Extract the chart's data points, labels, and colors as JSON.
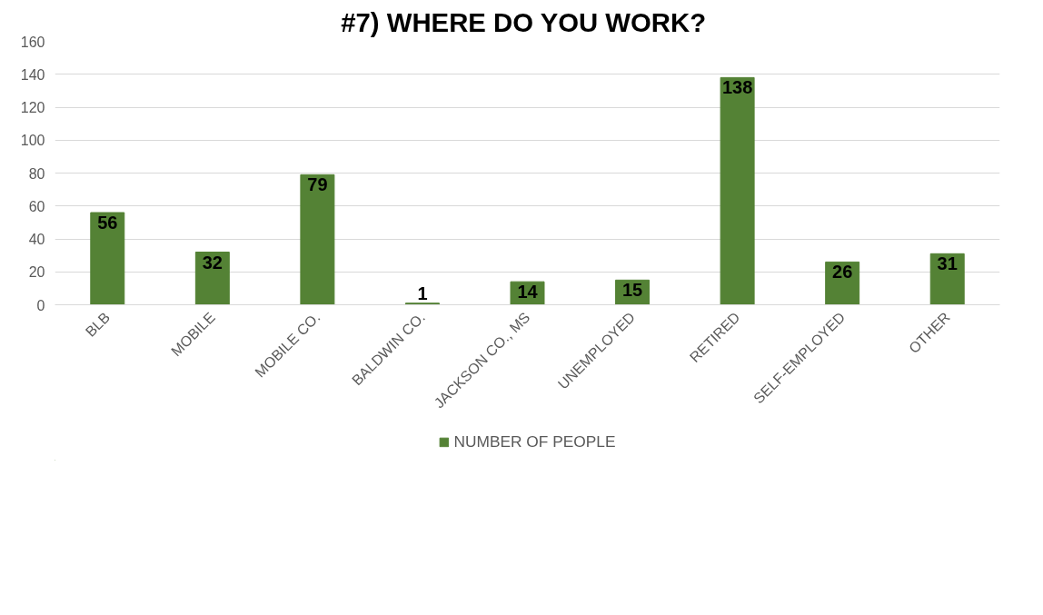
{
  "chart_data": {
    "type": "bar",
    "title": "#7)  WHERE DO YOU WORK?",
    "categories": [
      "BLB",
      "MOBILE",
      "MOBILE CO.",
      "BALDWIN CO.",
      "JACKSON CO., MS",
      "UNEMPLOYED",
      "RETIRED",
      "SELF-EMPLOYED",
      "OTHER"
    ],
    "series": [
      {
        "name": "NUMBER OF PEOPLE",
        "color": "#548235",
        "values": [
          56,
          32,
          79,
          1,
          14,
          15,
          138,
          26,
          31
        ]
      }
    ],
    "ylim": [
      0,
      160
    ],
    "yticks": [
      0,
      20,
      40,
      60,
      80,
      100,
      120,
      140,
      160
    ],
    "grid": "y",
    "legend": "bottom",
    "data_labels": true
  }
}
